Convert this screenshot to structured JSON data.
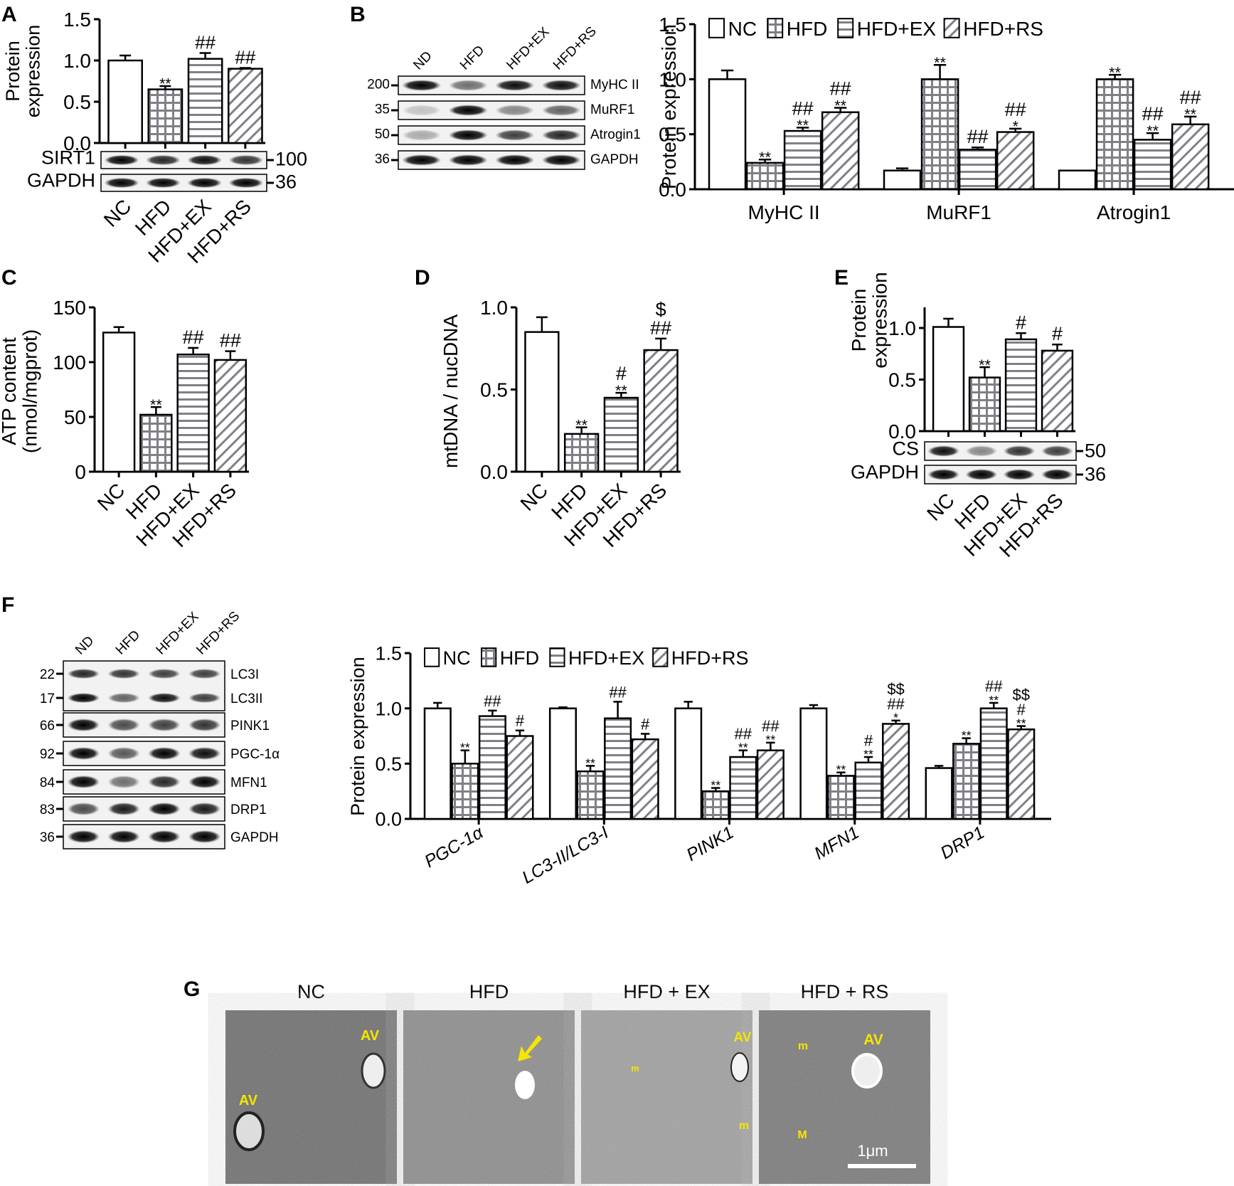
{
  "figure": {
    "groups": [
      "NC",
      "HFD",
      "HFD+EX",
      "HFD+RS"
    ],
    "blot_lane_labels": [
      "ND",
      "HFD",
      "HFD+EX",
      "HFD+RS"
    ],
    "colors": {
      "bar_fill": "#ffffff",
      "pattern_line": "#808088",
      "axis": "#000000",
      "em_label": "#f5e600"
    },
    "patterns": {
      "NC": "open",
      "HFD": "grid",
      "HFD+EX": "horizontal",
      "HFD+RS": "diagonal"
    }
  },
  "panels": {
    "A": {
      "letter": "A",
      "ylabel_line1": "Protein",
      "ylabel_line2": "expression",
      "blots": [
        {
          "name": "SIRT1",
          "kda": "100"
        },
        {
          "name": "GAPDH",
          "kda": "36"
        }
      ]
    },
    "B": {
      "letter": "B",
      "ylabel": "Protein expression",
      "blots": [
        {
          "name": "MyHC II",
          "kda": "200"
        },
        {
          "name": "MuRF1",
          "kda": "35"
        },
        {
          "name": "Atrogin1",
          "kda": "50"
        },
        {
          "name": "GAPDH",
          "kda": "36"
        }
      ]
    },
    "C": {
      "letter": "C",
      "ylabel_line1": "ATP content",
      "ylabel_line2": "(nmol/mgprot)"
    },
    "D": {
      "letter": "D",
      "ylabel": "mtDNA / nucDNA"
    },
    "E": {
      "letter": "E",
      "ylabel_line1": "Protein",
      "ylabel_line2": "expression",
      "blots": [
        {
          "name": "CS",
          "kda": "50"
        },
        {
          "name": "GAPDH",
          "kda": "36"
        }
      ]
    },
    "F": {
      "letter": "F",
      "ylabel": "Protein expression",
      "blots": [
        {
          "name": "LC3I",
          "kda": "22"
        },
        {
          "name": "LC3II",
          "kda": "17"
        },
        {
          "name": "PINK1",
          "kda": "66"
        },
        {
          "name": "PGC-1α",
          "kda": "92"
        },
        {
          "name": "MFN1",
          "kda": "84"
        },
        {
          "name": "DRP1",
          "kda": "83"
        },
        {
          "name": "GAPDH",
          "kda": "36"
        }
      ]
    },
    "G": {
      "letter": "G",
      "titles": [
        "NC",
        "HFD",
        "HFD + EX",
        "HFD + RS"
      ],
      "annotations": [
        [
          "AV",
          "AV"
        ],
        [
          "arrow"
        ],
        [
          "AV",
          "m",
          "m"
        ],
        [
          "AV",
          "m",
          "M"
        ]
      ],
      "scale_bar": "1μm"
    }
  },
  "chart_data": [
    {
      "panel": "A",
      "type": "bar",
      "title": "",
      "xlabel": "",
      "ylabel": "Protein expression",
      "categories": [
        "NC",
        "HFD",
        "HFD+EX",
        "HFD+RS"
      ],
      "values": [
        1.0,
        0.65,
        1.02,
        0.9
      ],
      "errors": [
        0.06,
        0.04,
        0.07,
        0.01
      ],
      "annotations": [
        "",
        "**",
        "##",
        "##"
      ],
      "ylim": [
        0,
        1.5
      ],
      "yticks": [
        0.0,
        0.5,
        1.0,
        1.5
      ],
      "yticklabels": [
        "0.0",
        "0.5",
        "1.0",
        "1.5"
      ]
    },
    {
      "panel": "B",
      "type": "bar",
      "title": "",
      "xlabel": "",
      "ylabel": "Protein expression",
      "categories": [
        "MyHC II",
        "MuRF1",
        "Atrogin1"
      ],
      "series": [
        {
          "name": "NC",
          "values": [
            1.0,
            0.17,
            0.17
          ],
          "errors": [
            0.08,
            0.02,
            0.0
          ],
          "annotations": [
            "",
            "",
            ""
          ]
        },
        {
          "name": "HFD",
          "values": [
            0.24,
            1.0,
            1.0
          ],
          "errors": [
            0.03,
            0.13,
            0.04
          ],
          "annotations": [
            "**",
            "**",
            "**"
          ]
        },
        {
          "name": "HFD+EX",
          "values": [
            0.53,
            0.36,
            0.45
          ],
          "errors": [
            0.03,
            0.02,
            0.06
          ],
          "annotations": [
            "**\n##",
            "##",
            "**\n##"
          ]
        },
        {
          "name": "HFD+RS",
          "values": [
            0.7,
            0.52,
            0.59
          ],
          "errors": [
            0.04,
            0.03,
            0.07
          ],
          "annotations": [
            "**\n##",
            "*\n##",
            "**\n##"
          ]
        }
      ],
      "legend": [
        "NC",
        "HFD",
        "HFD+EX",
        "HFD+RS"
      ],
      "legend_position": "top",
      "ylim": [
        0,
        1.5
      ],
      "yticks": [
        0.0,
        0.5,
        1.0,
        1.5
      ],
      "yticklabels": [
        "0.0",
        "0.5",
        "1.0",
        "1.5"
      ]
    },
    {
      "panel": "C",
      "type": "bar",
      "title": "",
      "xlabel": "",
      "ylabel": "ATP content (nmol/mgprot)",
      "categories": [
        "NC",
        "HFD",
        "HFD+EX",
        "HFD+RS"
      ],
      "values": [
        127,
        52,
        107,
        102
      ],
      "errors": [
        5,
        7,
        6,
        8
      ],
      "annotations": [
        "",
        "**",
        "##",
        "##"
      ],
      "ylim": [
        0,
        150
      ],
      "yticks": [
        0,
        50,
        100,
        150
      ],
      "yticklabels": [
        "0",
        "50",
        "100",
        "150"
      ]
    },
    {
      "panel": "D",
      "type": "bar",
      "title": "",
      "xlabel": "",
      "ylabel": "mtDNA / nucDNA",
      "categories": [
        "NC",
        "HFD",
        "HFD+EX",
        "HFD+RS"
      ],
      "values": [
        0.85,
        0.23,
        0.45,
        0.74
      ],
      "errors": [
        0.09,
        0.04,
        0.03,
        0.07
      ],
      "annotations": [
        "",
        "**",
        "**\n#",
        "##\n$"
      ],
      "ylim": [
        0,
        1.0
      ],
      "yticks": [
        0.0,
        0.5,
        1.0
      ],
      "yticklabels": [
        "0.0",
        "0.5",
        "1.0"
      ]
    },
    {
      "panel": "E",
      "type": "bar",
      "title": "",
      "xlabel": "",
      "ylabel": "Protein expression",
      "categories": [
        "NC",
        "HFD",
        "HFD+EX",
        "HFD+RS"
      ],
      "values": [
        1.01,
        0.52,
        0.89,
        0.78
      ],
      "errors": [
        0.08,
        0.1,
        0.06,
        0.06
      ],
      "annotations": [
        "",
        "**",
        "#",
        "#"
      ],
      "ylim": [
        0,
        1.2
      ],
      "yticks": [
        0.0,
        0.5,
        1.0
      ],
      "yticklabels": [
        "0.0",
        "0.5",
        "1.0"
      ]
    },
    {
      "panel": "F",
      "type": "bar",
      "title": "",
      "xlabel": "",
      "ylabel": "Protein expression",
      "categories": [
        "PGC-1α",
        "LC3-II/LC3-I",
        "PINK1",
        "MFN1",
        "DRP1"
      ],
      "series": [
        {
          "name": "NC",
          "values": [
            1.0,
            1.0,
            1.0,
            1.0,
            0.46
          ],
          "errors": [
            0.05,
            0.01,
            0.06,
            0.03,
            0.02
          ],
          "annotations": [
            "",
            "",
            "",
            "",
            ""
          ]
        },
        {
          "name": "HFD",
          "values": [
            0.5,
            0.43,
            0.25,
            0.39,
            0.68
          ],
          "errors": [
            0.12,
            0.05,
            0.03,
            0.03,
            0.05
          ],
          "annotations": [
            "**",
            "**",
            "**",
            "**",
            "**"
          ]
        },
        {
          "name": "HFD+EX",
          "values": [
            0.93,
            0.91,
            0.56,
            0.51,
            1.0
          ],
          "errors": [
            0.05,
            0.15,
            0.06,
            0.05,
            0.05
          ],
          "annotations": [
            "##",
            "##",
            "**\n##",
            "**\n#",
            "**\n##"
          ]
        },
        {
          "name": "HFD+RS",
          "values": [
            0.75,
            0.72,
            0.62,
            0.86,
            0.81
          ],
          "errors": [
            0.05,
            0.05,
            0.07,
            0.03,
            0.03
          ],
          "annotations": [
            "#",
            "#",
            "**\n##",
            "*\n##\n$$",
            "**\n#\n$$"
          ]
        }
      ],
      "legend": [
        "NC",
        "HFD",
        "HFD+EX",
        "HFD+RS"
      ],
      "legend_position": "top",
      "ylim": [
        0,
        1.5
      ],
      "yticks": [
        0.0,
        0.5,
        1.0,
        1.5
      ],
      "yticklabels": [
        "0.0",
        "0.5",
        "1.0",
        "1.5"
      ]
    }
  ]
}
